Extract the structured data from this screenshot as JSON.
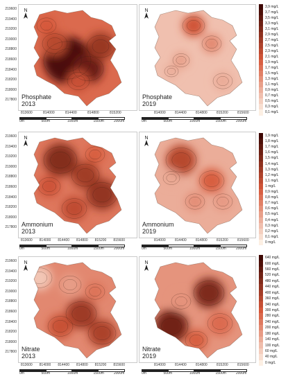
{
  "legends": {
    "phosphate": {
      "levels": [
        "3,9 mg/L",
        "3,7 mg/L",
        "3,5 mg/L",
        "3,3 mg/L",
        "3,1 mg/L",
        "2,9 mg/L",
        "2,7 mg/L",
        "2,5 mg/L",
        "2,3 mg/L",
        "2,1 mg/L",
        "1,9 mg/L",
        "1,7 mg/L",
        "1,5 mg/L",
        "1,3 mg/L",
        "1,1 mg/L",
        "0,9 mg/L",
        "0,7 mg/L",
        "0,5 mg/L",
        "0,3 mg/L",
        "0,1 mg/L"
      ],
      "color_top": "#3d0703",
      "color_bottom": "#fcefe3"
    },
    "ammonium": {
      "levels": [
        "1,9 mg/L",
        "1,8 mg/L",
        "1,7 mg/L",
        "1,6 mg/L",
        "1,5 mg/L",
        "1,4 mg/L",
        "1,3 mg/L",
        "1,2 mg/L",
        "1,1 mg/L",
        "1 mg/L",
        "0,9 mg/L",
        "0,8 mg/L",
        "0,7 mg/L",
        "0,6 mg/L",
        "0,5 mg/L",
        "0,4 mg/L",
        "0,3 mg/L",
        "0,2 mg/L",
        "0,1 mg/L",
        "0 mg/L"
      ],
      "color_top": "#3d0703",
      "color_bottom": "#fcefe3"
    },
    "nitrate": {
      "levels": [
        "640 mg/L",
        "600 mg/L",
        "560 mg/L",
        "520 mg/L",
        "480 mg/L",
        "440 mg/L",
        "400 mg/L",
        "360 mg/L",
        "340 mg/L",
        "300 mg/L",
        "280 mg/L",
        "240 mg/L",
        "200 mg/L",
        "180 mg/L",
        "140 mg/L",
        "100 mg/L",
        "60 mg/L",
        "40 mg/L",
        "0 mg/L"
      ],
      "color_top": "#3d0703",
      "color_bottom": "#fcefe3"
    }
  },
  "panels": [
    {
      "label_line1": "Phosphate",
      "label_line2": "2013",
      "intensity": 0.8
    },
    {
      "label_line1": "Phosphate",
      "label_line2": "2019",
      "intensity": 0.28
    },
    {
      "label_line1": "Ammonium",
      "label_line2": "2013",
      "intensity": 0.72
    },
    {
      "label_line1": "Ammonium",
      "label_line2": "2019",
      "intensity": 0.4
    },
    {
      "label_line1": "Nitrate",
      "label_line2": "2013",
      "intensity": 0.62
    },
    {
      "label_line1": "Nitrate",
      "label_line2": "2019",
      "intensity": 0.55
    }
  ],
  "rows": [
    {
      "y_ticks": [
        "219600",
        "219400",
        "219200",
        "219000",
        "218800",
        "218600",
        "218400",
        "218200",
        "218000",
        "217800"
      ],
      "x_ticks_left": [
        "813600",
        "814000",
        "814400",
        "814800",
        "815200"
      ],
      "x_ticks_right": [
        "814000",
        "814400",
        "814800",
        "815200",
        "815600"
      ]
    },
    {
      "y_ticks": [
        "219600",
        "219400",
        "219200",
        "219000",
        "218800",
        "218600",
        "218400",
        "218200",
        "218000",
        "217800"
      ],
      "x_ticks_left": [
        "813600",
        "814000",
        "814400",
        "814800",
        "815200",
        "815600"
      ],
      "x_ticks_right": [
        "814000",
        "814400",
        "814800",
        "815200",
        "815600"
      ]
    },
    {
      "y_ticks": [
        "219600",
        "219400",
        "219200",
        "219000",
        "218800",
        "218600",
        "218400",
        "218200",
        "218000",
        "217800"
      ],
      "x_ticks_left": [
        "813600",
        "814000",
        "814400",
        "814800",
        "815200",
        "815600"
      ],
      "x_ticks_right": [
        "814000",
        "814400",
        "814800",
        "815200",
        "815600"
      ]
    }
  ],
  "scale_bar": {
    "left": [
      "0m",
      "500m",
      "1000m",
      "1500m",
      "2000m"
    ],
    "right": [
      "0m",
      "500m",
      "1000m",
      "1500m",
      "2000m"
    ]
  },
  "north_label": "N"
}
